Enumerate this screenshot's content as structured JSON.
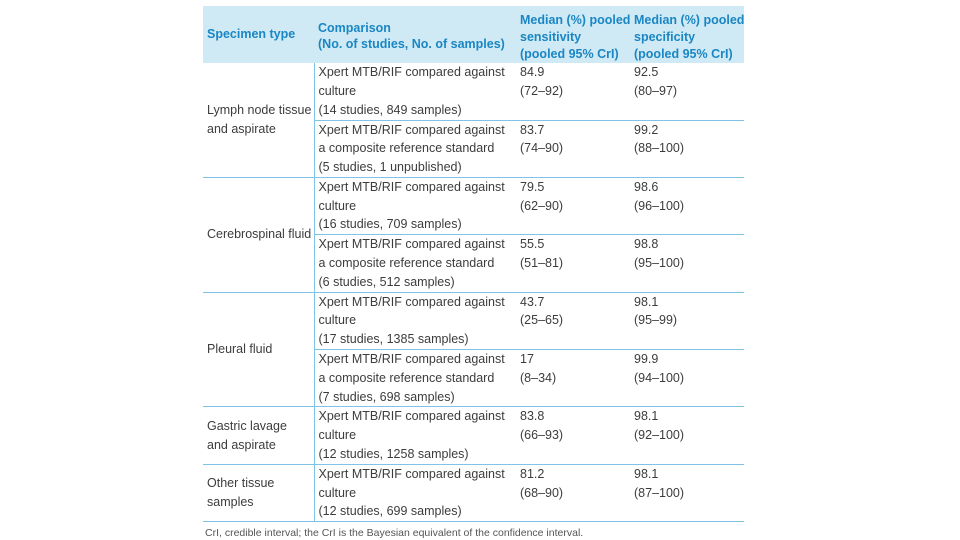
{
  "header": {
    "specimen_type": "Specimen type",
    "comparison": [
      "Comparison",
      "(No. of studies, No. of samples)"
    ],
    "sensitivity": [
      "Median (%) pooled",
      "sensitivity",
      "(pooled 95% CrI)"
    ],
    "specificity": [
      "Median (%) pooled",
      "specificity",
      "(pooled 95% CrI)"
    ]
  },
  "groups": [
    {
      "specimen": [
        "Lymph node tissue",
        "and aspirate"
      ],
      "rows": [
        {
          "comparison": [
            "Xpert MTB/RIF compared against",
            "culture",
            "(14 studies, 849 samples)"
          ],
          "sensitivity": [
            "84.9",
            "(72–92)"
          ],
          "specificity": [
            "92.5",
            "(80–97)"
          ]
        },
        {
          "comparison": [
            "Xpert MTB/RIF compared against",
            "a composite reference standard",
            "(5 studies, 1 unpublished)"
          ],
          "sensitivity": [
            "83.7",
            "(74–90)"
          ],
          "specificity": [
            "99.2",
            "(88–100)"
          ]
        }
      ]
    },
    {
      "specimen": [
        "Cerebrospinal fluid"
      ],
      "rows": [
        {
          "comparison": [
            "Xpert MTB/RIF compared against",
            "culture",
            "(16 studies, 709 samples)"
          ],
          "sensitivity": [
            "79.5",
            "(62–90)"
          ],
          "specificity": [
            "98.6",
            "(96–100)"
          ]
        },
        {
          "comparison": [
            "Xpert MTB/RIF compared against",
            "a composite reference standard",
            "(6 studies, 512 samples)"
          ],
          "sensitivity": [
            "55.5",
            "(51–81)"
          ],
          "specificity": [
            "98.8",
            "(95–100)"
          ]
        }
      ]
    },
    {
      "specimen": [
        "Pleural fluid"
      ],
      "rows": [
        {
          "comparison": [
            "Xpert MTB/RIF compared against",
            "culture",
            "(17 studies, 1385 samples)"
          ],
          "sensitivity": [
            "43.7",
            "(25–65)"
          ],
          "specificity": [
            "98.1",
            "(95–99)"
          ]
        },
        {
          "comparison": [
            "Xpert MTB/RIF compared against",
            "a composite reference standard",
            "(7 studies, 698 samples)"
          ],
          "sensitivity": [
            "17",
            "(8–34)"
          ],
          "specificity": [
            "99.9",
            "(94–100)"
          ]
        }
      ]
    },
    {
      "specimen": [
        "Gastric lavage",
        "and aspirate"
      ],
      "rows": [
        {
          "comparison": [
            "Xpert MTB/RIF compared against",
            "culture",
            "(12 studies, 1258 samples)"
          ],
          "sensitivity": [
            "83.8",
            "(66–93)"
          ],
          "specificity": [
            "98.1",
            "(92–100)"
          ]
        }
      ]
    },
    {
      "specimen": [
        "Other tissue",
        "samples"
      ],
      "rows": [
        {
          "comparison": [
            "Xpert MTB/RIF compared against",
            "culture",
            "(12 studies, 699 samples)"
          ],
          "sensitivity": [
            "81.2",
            "(68–90)"
          ],
          "specificity": [
            "98.1",
            "(87–100)"
          ]
        }
      ]
    }
  ],
  "footnote": "CrI, credible interval; the CrI is the Bayesian equivalent of the confidence interval."
}
